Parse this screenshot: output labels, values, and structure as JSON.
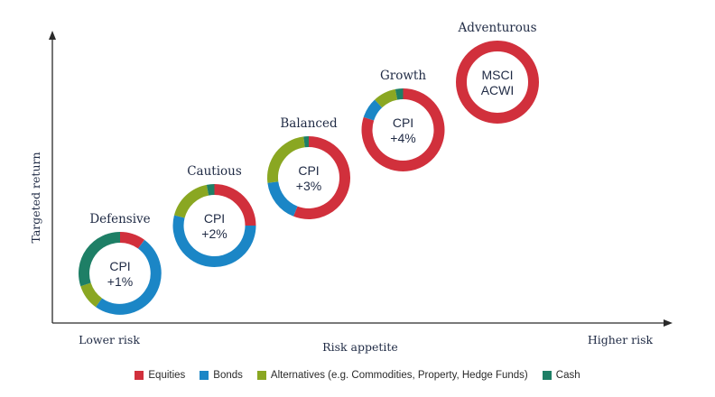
{
  "chart_data": {
    "type": "scatter",
    "xlabel": "Risk appetite",
    "ylabel": "Targeted return",
    "x_tick_labels": {
      "left": "Lower risk",
      "right": "Higher risk"
    },
    "grid": false,
    "legend_position": "bottom",
    "series_names": [
      "Equities",
      "Bonds",
      "Alternatives (e.g. Commodities, Property, Hedge Funds)",
      "Cash"
    ],
    "colors": {
      "Equities": "#d1303c",
      "Bonds": "#1b86c6",
      "Alternatives (e.g. Commodities, Property, Hedge Funds)": "#8aa722",
      "Cash": "#1e7f66",
      "axis": "#2a2a2a"
    },
    "points": [
      {
        "name": "Defensive",
        "center_lines": [
          "CPI",
          "+1%"
        ],
        "x": 1,
        "y": 1,
        "allocation": {
          "Equities": 10,
          "Bonds": 50,
          "Alternatives (e.g. Commodities, Property, Hedge Funds)": 10,
          "Cash": 30
        }
      },
      {
        "name": "Cautious",
        "center_lines": [
          "CPI",
          "+2%"
        ],
        "x": 2,
        "y": 2,
        "allocation": {
          "Equities": 25,
          "Bonds": 54,
          "Alternatives (e.g. Commodities, Property, Hedge Funds)": 18,
          "Cash": 3
        }
      },
      {
        "name": "Balanced",
        "center_lines": [
          "CPI",
          "+3%"
        ],
        "x": 3,
        "y": 3,
        "allocation": {
          "Equities": 56,
          "Bonds": 17,
          "Alternatives (e.g. Commodities, Property, Hedge Funds)": 25,
          "Cash": 2
        }
      },
      {
        "name": "Growth",
        "center_lines": [
          "CPI",
          "+4%"
        ],
        "x": 4,
        "y": 4,
        "allocation": {
          "Equities": 80,
          "Bonds": 8,
          "Alternatives (e.g. Commodities, Property, Hedge Funds)": 9,
          "Cash": 3
        }
      },
      {
        "name": "Adventurous",
        "center_lines": [
          "MSCI",
          "ACWI"
        ],
        "x": 5,
        "y": 5,
        "allocation": {
          "Equities": 100,
          "Bonds": 0,
          "Alternatives (e.g. Commodities, Property, Hedge Funds)": 0,
          "Cash": 0
        }
      }
    ]
  }
}
